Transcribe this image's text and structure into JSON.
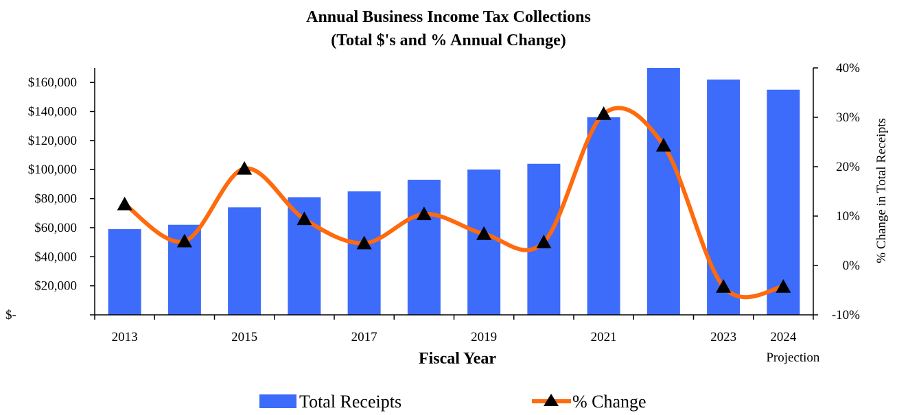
{
  "chart_data": {
    "type": "bar",
    "title": "Annual Business Income Tax Collections",
    "subtitle": "(Total $'s and % Annual Change)",
    "xlabel": "Fiscal Year",
    "ylabel": "",
    "y2label": "% Change in Total Receipts",
    "categories": [
      "2013",
      "2014",
      "2015",
      "2016",
      "2017",
      "2018",
      "2019",
      "2020",
      "2021",
      "2022",
      "2023",
      "2024"
    ],
    "x_tick_labels": [
      {
        "index": 0,
        "label": "2013"
      },
      {
        "index": 2,
        "label": "2015"
      },
      {
        "index": 4,
        "label": "2017"
      },
      {
        "index": 6,
        "label": "2019"
      },
      {
        "index": 8,
        "label": "2021"
      },
      {
        "index": 10,
        "label": "2023"
      },
      {
        "index": 11,
        "label": "2024",
        "sublabel": "Projection"
      }
    ],
    "ylim": [
      0,
      170000
    ],
    "y_ticks": [
      0,
      20000,
      40000,
      60000,
      80000,
      100000,
      120000,
      140000,
      160000
    ],
    "y_tick_labels": [
      "$-",
      "$20,000",
      "$40,000",
      "$60,000",
      "$80,000",
      "$100,000",
      "$120,000",
      "$140,000",
      "$160,000"
    ],
    "y2lim": [
      -10,
      40
    ],
    "y2_ticks": [
      -10,
      0,
      10,
      20,
      30,
      40
    ],
    "y2_tick_labels": [
      "-10%",
      "0%",
      "10%",
      "20%",
      "30%",
      "40%"
    ],
    "series": [
      {
        "name": "Total Receipts",
        "type": "bar",
        "axis": "left",
        "color": "#3d6bfa",
        "values": [
          59000,
          62000,
          74000,
          81000,
          85000,
          93000,
          100000,
          104000,
          136000,
          170000,
          162000,
          155000
        ]
      },
      {
        "name": "% Change",
        "type": "line",
        "axis": "right",
        "color": "#ff6a0d",
        "marker": "triangle",
        "marker_color": "#000000",
        "values": [
          12.4,
          4.9,
          19.6,
          9.4,
          4.5,
          10.4,
          6.4,
          4.7,
          30.7,
          24.3,
          -4.3,
          -4.3
        ]
      }
    ],
    "grid": false,
    "legend": "bottom"
  }
}
